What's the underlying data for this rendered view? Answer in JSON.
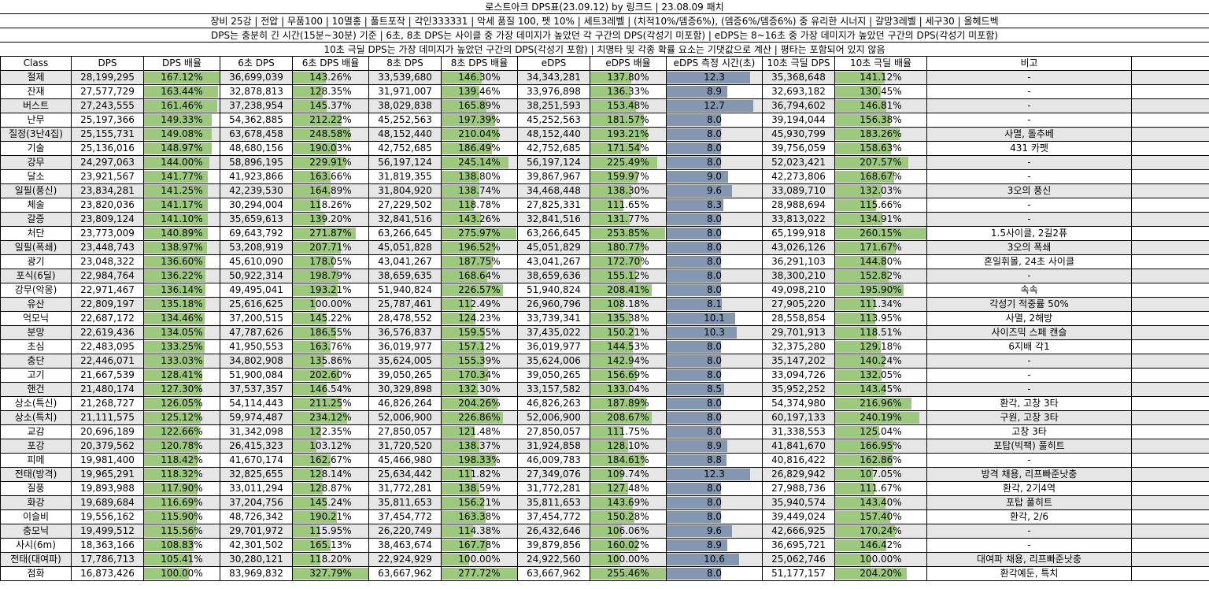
{
  "title": "로스트아크 DPS표(23.09.12) by 링크드 | 23.08.09 패치",
  "conditions": "장비 25강 | 전압 | 무품100 | 10멸홍 | 풀트포작 | 각인333331 | 악세 품질 100, 펫 10% | 세트3레벨 | (치적10%/뎀증6%), (뎀증6%/뎀증6%) 중 유리한 시너지 | 갈망3레벨 | 세구30 | 올헤드벡",
  "note1": "DPS는 충분히 긴 시간(15분~30분) 기준 | 6초, 8초 DPS는 사이클 중 가장 데미지가 높았던 각 구간의 DPS(각성기 미포함) | eDPS는 8~16초 중 가장 데미지가 높았던 구간의 DPS(각성기 미포함)",
  "note2": "10초 극딜 DPS는 가장 데미지가 높았던 구간의 DPS(각성기 포함) | 치명타 및 각종 확률 요소는 기댓값으로 계산 | 평타는 포함되어 있지 않음",
  "colors": {
    "green_bar": "#9dc97c",
    "blue_bar": "#8497b0",
    "alt_row": "#e6e6e6"
  },
  "columns": [
    "Class",
    "DPS",
    "DPS 배율",
    "6초 DPS",
    "6초 DPS 배율",
    "8초 DPS",
    "8초 DPS 배율",
    "eDPS",
    "eDPS 배율",
    "eDPS 측정 시간(초)",
    "10초 극딜 DPS",
    "10초 극딜 배율",
    "비고"
  ],
  "rows": [
    [
      "절제",
      "28,199,295",
      "167.12%",
      "36,699,039",
      "143.26%",
      "33,539,680",
      "146.30%",
      "34,343,281",
      "137.80%",
      "12.3",
      "35,368,648",
      "141.12%",
      "-"
    ],
    [
      "잔재",
      "27,577,729",
      "163.44%",
      "32,878,813",
      "128.35%",
      "31,971,007",
      "139.46%",
      "33,976,898",
      "136.33%",
      "8.9",
      "32,693,182",
      "130.45%",
      "-"
    ],
    [
      "버스트",
      "27,243,555",
      "161.46%",
      "37,238,954",
      "145.37%",
      "38,029,838",
      "165.89%",
      "38,251,593",
      "153.48%",
      "12.7",
      "36,794,602",
      "146.81%",
      "-"
    ],
    [
      "난무",
      "25,197,366",
      "149.33%",
      "54,362,885",
      "212.22%",
      "45,252,563",
      "197.39%",
      "45,252,563",
      "181.57%",
      "8.0",
      "39,194,044",
      "156.38%",
      "-"
    ],
    [
      "질정(3난4집)",
      "25,155,731",
      "149.08%",
      "63,678,458",
      "248.58%",
      "48,152,440",
      "210.04%",
      "48,152,440",
      "193.21%",
      "8.0",
      "45,930,799",
      "183.26%",
      "사멸, 돌추베"
    ],
    [
      "기술",
      "25,136,016",
      "148.97%",
      "48,680,156",
      "190.03%",
      "42,752,685",
      "186.49%",
      "42,752,685",
      "171.54%",
      "8.0",
      "39,756,059",
      "158.63%",
      "431 카펫"
    ],
    [
      "강무",
      "24,297,063",
      "144.00%",
      "58,896,195",
      "229.91%",
      "56,197,124",
      "245.14%",
      "56,197,124",
      "225.49%",
      "8.0",
      "52,023,421",
      "207.57%",
      "-"
    ],
    [
      "달소",
      "23,921,567",
      "141.77%",
      "41,923,866",
      "163.66%",
      "31,819,355",
      "138.80%",
      "39,867,967",
      "159.97%",
      "9.0",
      "42,273,806",
      "168.67%",
      "-"
    ],
    [
      "일필(풍신)",
      "23,834,281",
      "141.25%",
      "42,239,530",
      "164.89%",
      "31,804,920",
      "138.74%",
      "34,468,448",
      "138.30%",
      "9.6",
      "33,089,710",
      "132.03%",
      "3오의 풍신"
    ],
    [
      "체술",
      "23,820,036",
      "141.17%",
      "30,294,004",
      "118.26%",
      "27,229,502",
      "118.78%",
      "27,825,331",
      "111.65%",
      "8.3",
      "28,988,694",
      "115.66%",
      "-"
    ],
    [
      "갈증",
      "23,809,124",
      "141.10%",
      "35,659,613",
      "139.20%",
      "32,841,516",
      "143.26%",
      "32,841,516",
      "131.77%",
      "8.0",
      "33,813,022",
      "134.91%",
      "-"
    ],
    [
      "처단",
      "23,773,009",
      "140.89%",
      "69,643,792",
      "271.87%",
      "63,266,645",
      "275.97%",
      "63,266,645",
      "253.85%",
      "8.0",
      "65,199,918",
      "260.15%",
      "1.5사이클, 2길2퓨"
    ],
    [
      "일필(폭쇄)",
      "23,448,743",
      "138.97%",
      "53,208,919",
      "207.71%",
      "45,051,828",
      "196.52%",
      "45,051,829",
      "180.77%",
      "8.0",
      "43,026,126",
      "171.67%",
      "3오의 폭쇄"
    ],
    [
      "광기",
      "23,048,322",
      "136.60%",
      "45,610,090",
      "178.05%",
      "43,041,267",
      "187.75%",
      "43,041,267",
      "172.70%",
      "8.0",
      "36,291,103",
      "144.80%",
      "혼일휘몰, 24초 사이클"
    ],
    [
      "포식(6딜)",
      "22,984,764",
      "136.22%",
      "50,922,314",
      "198.79%",
      "38,659,635",
      "168.64%",
      "38,659,636",
      "155.12%",
      "8.0",
      "38,300,210",
      "152.82%",
      "-"
    ],
    [
      "강무(악몽)",
      "22,971,467",
      "136.14%",
      "49,495,041",
      "193.21%",
      "51,940,824",
      "226.57%",
      "51,940,824",
      "208.41%",
      "8.0",
      "49,098,210",
      "195.90%",
      "속속"
    ],
    [
      "유산",
      "22,809,197",
      "135.18%",
      "25,616,625",
      "100.00%",
      "25,787,461",
      "112.49%",
      "26,960,796",
      "108.18%",
      "8.1",
      "27,905,220",
      "111.34%",
      "각성기 적중률 50%"
    ],
    [
      "억모닉",
      "22,687,172",
      "134.46%",
      "37,200,515",
      "145.22%",
      "28,478,552",
      "124.23%",
      "33,739,341",
      "135.38%",
      "10.1",
      "28,558,854",
      "113.95%",
      "사멸, 2해방"
    ],
    [
      "분망",
      "22,619,436",
      "134.05%",
      "47,787,626",
      "186.55%",
      "36,576,837",
      "159.55%",
      "37,435,022",
      "150.21%",
      "10.3",
      "29,701,913",
      "118.51%",
      "사이즈믹 스페 캔슬"
    ],
    [
      "초심",
      "22,483,095",
      "133.25%",
      "41,950,553",
      "163.76%",
      "36,019,977",
      "157.12%",
      "36,019,977",
      "144.53%",
      "8.0",
      "32,375,280",
      "129.18%",
      "6지배 각1"
    ],
    [
      "충단",
      "22,446,071",
      "133.03%",
      "34,802,908",
      "135.86%",
      "35,624,005",
      "155.39%",
      "35,624,006",
      "142.94%",
      "8.0",
      "35,147,202",
      "140.24%",
      "-"
    ],
    [
      "고기",
      "21,667,539",
      "128.41%",
      "51,900,084",
      "202.60%",
      "39,050,265",
      "170.34%",
      "39,050,265",
      "156.69%",
      "8.0",
      "33,094,726",
      "132.05%",
      "-"
    ],
    [
      "핸건",
      "21,480,174",
      "127.30%",
      "37,537,357",
      "146.54%",
      "30,329,898",
      "132.30%",
      "33,157,582",
      "133.04%",
      "8.5",
      "35,952,252",
      "143.45%",
      "-"
    ],
    [
      "상소(특신)",
      "21,268,727",
      "126.05%",
      "54,114,443",
      "211.25%",
      "46,826,264",
      "204.26%",
      "46,826,263",
      "187.89%",
      "8.0",
      "54,374,980",
      "216.96%",
      "환각, 고창 3타"
    ],
    [
      "상소(특치)",
      "21,111,575",
      "125.12%",
      "59,974,487",
      "234.12%",
      "52,006,900",
      "226.86%",
      "52,006,900",
      "208.67%",
      "8.0",
      "60,197,133",
      "240.19%",
      "구원, 고창 3타"
    ],
    [
      "교감",
      "20,696,189",
      "122.66%",
      "31,342,098",
      "122.35%",
      "27,850,057",
      "121.48%",
      "27,850,057",
      "111.75%",
      "8.0",
      "31,338,553",
      "125.04%",
      "고창 3타"
    ],
    [
      "포강",
      "20,379,562",
      "120.78%",
      "26,415,323",
      "103.12%",
      "31,720,520",
      "138.37%",
      "31,924,858",
      "128.10%",
      "8.9",
      "41,841,670",
      "166.95%",
      "포탑(빅팩) 풀히트"
    ],
    [
      "피메",
      "19,981,400",
      "118.42%",
      "41,670,174",
      "162.67%",
      "45,466,980",
      "198.33%",
      "46,009,783",
      "184.61%",
      "8.8",
      "40,816,422",
      "162.86%",
      "-"
    ],
    [
      "전태(방격)",
      "19,965,291",
      "118.32%",
      "32,825,655",
      "128.14%",
      "25,634,442",
      "111.82%",
      "27,349,076",
      "109.74%",
      "12.3",
      "26,829,942",
      "107.05%",
      "방격 채용, 리프빠준낫충"
    ],
    [
      "질풍",
      "19,893,988",
      "117.90%",
      "33,011,294",
      "128.87%",
      "31,772,281",
      "138.59%",
      "31,772,281",
      "127.48%",
      "8.0",
      "27,988,736",
      "111.67%",
      "환각, 2기4역"
    ],
    [
      "화강",
      "19,689,684",
      "116.69%",
      "37,204,756",
      "145.24%",
      "35,811,653",
      "156.21%",
      "35,811,653",
      "143.69%",
      "8.0",
      "35,940,574",
      "143.40%",
      "포탑 풀히트"
    ],
    [
      "이슬비",
      "19,556,162",
      "115.90%",
      "48,726,342",
      "190.21%",
      "37,454,772",
      "163.38%",
      "37,454,772",
      "150.28%",
      "8.0",
      "39,449,024",
      "157.40%",
      "환각, 2/6"
    ],
    [
      "충모닉",
      "19,499,512",
      "115.56%",
      "29,701,972",
      "115.95%",
      "26,220,749",
      "114.38%",
      "26,432,646",
      "106.06%",
      "9.6",
      "42,666,925",
      "170.24%",
      "-"
    ],
    [
      "사시(6m)",
      "18,363,166",
      "108.83%",
      "42,301,502",
      "165.13%",
      "38,463,674",
      "167.78%",
      "39,879,856",
      "160.02%",
      "8.9",
      "36,695,721",
      "146.42%",
      "-"
    ],
    [
      "전태(대여파)",
      "17,786,713",
      "105.41%",
      "30,280,121",
      "118.20%",
      "22,924,929",
      "100.00%",
      "24,922,560",
      "100.00%",
      "10.6",
      "25,062,746",
      "100.00%",
      "대여파 채용, 리프빠준낫충"
    ],
    [
      "점화",
      "16,873,426",
      "100.00%",
      "83,969,832",
      "327.79%",
      "63,667,962",
      "277.72%",
      "63,667,962",
      "255.46%",
      "8.0",
      "51,177,157",
      "204.20%",
      "환각예둔, 특치"
    ]
  ]
}
